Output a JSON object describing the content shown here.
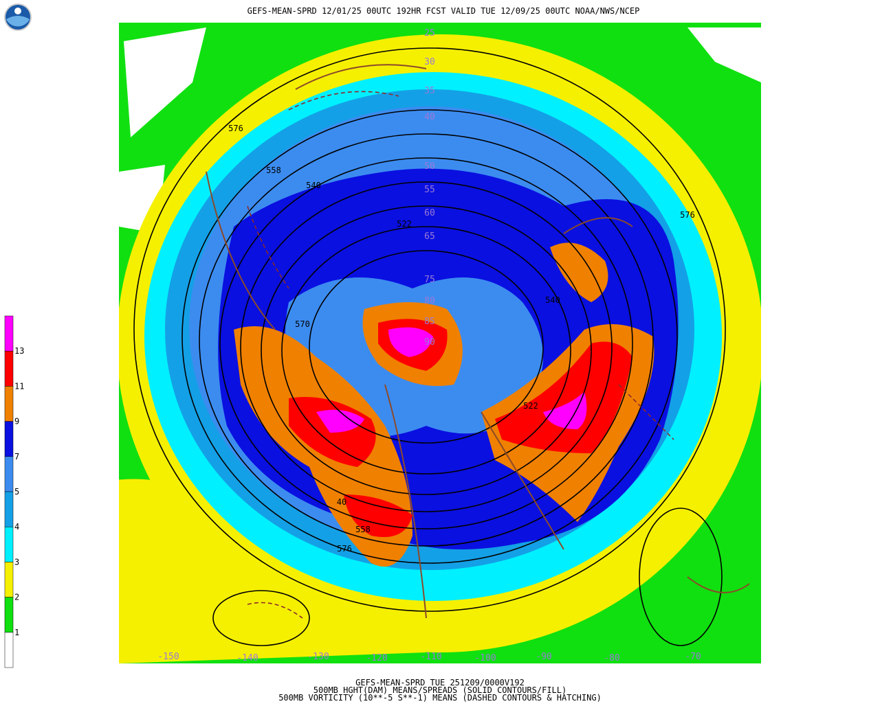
{
  "header": {
    "title": "GEFS-MEAN-SPRD 12/01/25 00UTC 192HR FCST VALID TUE 12/09/25 00UTC NOAA/NWS/NCEP"
  },
  "legend": {
    "top_color": "#ff00ff",
    "levels": [
      {
        "value": 13,
        "color": "#ff0000"
      },
      {
        "value": 11,
        "color": "#f08000"
      },
      {
        "value": 9,
        "color": "#0a10e0"
      },
      {
        "value": 7,
        "color": "#3c8cf0"
      },
      {
        "value": 5,
        "color": "#14a0e6"
      },
      {
        "value": 4,
        "color": "#00f0ff"
      },
      {
        "value": 3,
        "color": "#f5f000"
      },
      {
        "value": 2,
        "color": "#10e010"
      },
      {
        "value": 1,
        "color": "#ffffff"
      }
    ]
  },
  "map": {
    "lat_labels": [
      25,
      30,
      35,
      40,
      50,
      55,
      60,
      65,
      75,
      80,
      85,
      90
    ],
    "lon_labels": [
      -150,
      -140,
      -130,
      -120,
      -110,
      -100,
      -90,
      -80,
      -70
    ],
    "contour_labels": [
      576,
      558,
      540,
      522,
      570,
      540,
      522,
      576,
      40,
      558,
      576
    ]
  },
  "footer": {
    "lines": [
      "GEFS-MEAN-SPRD TUE 251209/0000V192",
      "500MB HGHT(DAM) MEANS/SPREADS (SOLID CONTOURS/FILL)",
      "500MB VORTICITY (10**-5 S**-1) MEANS (DASHED CONTOURS & HATCHING)"
    ]
  }
}
